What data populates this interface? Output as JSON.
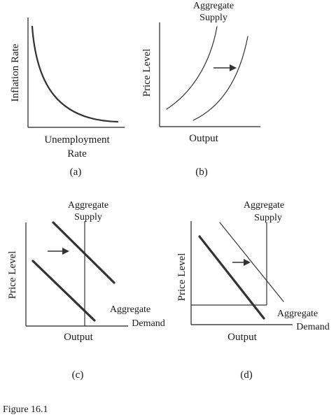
{
  "panels": {
    "a": {
      "caption": "(a)",
      "y_label": "Inflation Rate",
      "x_label_line1": "Unemployment",
      "x_label_line2": "Rate"
    },
    "b": {
      "caption": "(b)",
      "y_label": "Price Level",
      "x_label": "Output",
      "curve_label_line1": "Aggregate",
      "curve_label_line2": "Supply"
    },
    "c": {
      "caption": "(c)",
      "y_label": "Price Level",
      "x_label": "Output",
      "supply_label_line1": "Aggregate",
      "supply_label_line2": "Supply",
      "demand_label_line1": "Aggregate",
      "demand_label_line2": "Demand"
    },
    "d": {
      "caption": "(d)",
      "y_label": "Price Level",
      "x_label": "Output",
      "supply_label_line1": "Aggregate",
      "supply_label_line2": "Supply",
      "demand_label_line1": "Aggregate",
      "demand_label_line2": "Demand"
    }
  },
  "figure_caption": "Figure 16.1"
}
